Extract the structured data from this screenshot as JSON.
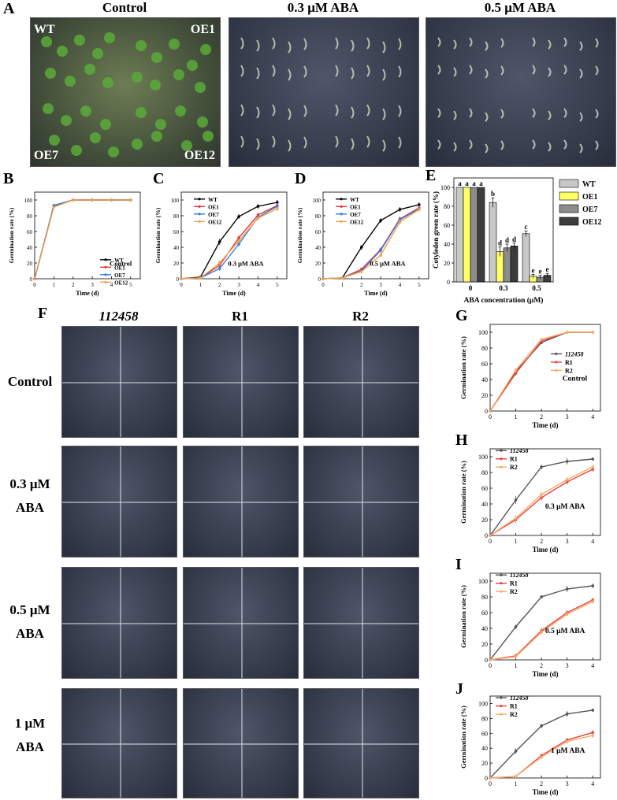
{
  "panel_letters": {
    "A": "A",
    "B": "B",
    "C": "C",
    "D": "D",
    "E": "E",
    "F": "F",
    "G": "G",
    "H": "H",
    "I": "I",
    "J": "J"
  },
  "photo_a": {
    "headers": [
      "Control",
      "0.3 μM ABA",
      "0.5 μM ABA"
    ],
    "quadrant_labels": [
      "WT",
      "OE1",
      "OE7",
      "OE12"
    ]
  },
  "photo_f": {
    "col_headers": [
      "112458",
      "R1",
      "R2"
    ],
    "row_labels": [
      {
        "line1": "Control",
        "line2": ""
      },
      {
        "line1": "0.3 μM",
        "line2": "ABA"
      },
      {
        "line1": "0.5 μM",
        "line2": "ABA"
      },
      {
        "line1": "1 μM",
        "line2": "ABA"
      }
    ]
  },
  "colors": {
    "WT": "#000000",
    "OE1": "#e8342f",
    "OE7": "#2e7ce6",
    "OE12": "#f0a24a",
    "line112458": "#555555",
    "R1": "#e8443f",
    "R2": "#f5ad6b"
  },
  "chart_data": [
    {
      "panel": "B",
      "type": "line",
      "title": "",
      "annotation": "Control",
      "xlabel": "Time (d)",
      "ylabel": "Germination rate (%)",
      "x": [
        0,
        1,
        2,
        3,
        4,
        5
      ],
      "xticks": [
        "0",
        "1",
        "2",
        "3",
        "4",
        "5"
      ],
      "yticks": [
        "0",
        "20",
        "40",
        "60",
        "80",
        "100"
      ],
      "xlim": [
        0,
        5.5
      ],
      "ylim": [
        0,
        110
      ],
      "series": [
        {
          "name": "WT",
          "color": "#000000",
          "values": [
            0,
            93,
            100,
            100,
            100,
            100
          ],
          "err": [
            0,
            2,
            0,
            0,
            0,
            0
          ]
        },
        {
          "name": "OE1",
          "color": "#e8342f",
          "values": [
            0,
            92,
            100,
            100,
            100,
            100
          ],
          "err": [
            0,
            2,
            0,
            0,
            0,
            0
          ]
        },
        {
          "name": "OE7",
          "color": "#2e7ce6",
          "values": [
            0,
            93,
            100,
            100,
            100,
            100
          ],
          "err": [
            0,
            2,
            0,
            0,
            0,
            0
          ]
        },
        {
          "name": "OE12",
          "color": "#f0a24a",
          "values": [
            0,
            91,
            100,
            100,
            100,
            100
          ],
          "err": [
            0,
            2,
            0,
            0,
            0,
            0
          ]
        }
      ],
      "legend": "right"
    },
    {
      "panel": "C",
      "type": "line",
      "title": "",
      "annotation": "0.3 μM ABA",
      "xlabel": "Time (d)",
      "ylabel": "Germination rate (%)",
      "x": [
        0,
        1,
        2,
        3,
        4,
        5
      ],
      "xticks": [
        "0",
        "1",
        "2",
        "3",
        "4",
        "5"
      ],
      "yticks": [
        "0",
        "20",
        "40",
        "60",
        "80",
        "100"
      ],
      "xlim": [
        0,
        5.5
      ],
      "ylim": [
        0,
        110
      ],
      "series": [
        {
          "name": "WT",
          "color": "#000000",
          "values": [
            0,
            2,
            47,
            79,
            92,
            97
          ],
          "err": [
            0,
            0,
            4,
            3,
            3,
            3
          ]
        },
        {
          "name": "OE1",
          "color": "#e8342f",
          "values": [
            0,
            1,
            17,
            52,
            81,
            93
          ],
          "err": [
            0,
            0,
            3,
            3,
            3,
            3
          ]
        },
        {
          "name": "OE7",
          "color": "#2e7ce6",
          "values": [
            0,
            1,
            13,
            44,
            78,
            92
          ],
          "err": [
            0,
            0,
            3,
            3,
            3,
            3
          ]
        },
        {
          "name": "OE12",
          "color": "#f0a24a",
          "values": [
            0,
            1,
            20,
            48,
            77,
            89
          ],
          "err": [
            0,
            0,
            4,
            3,
            3,
            3
          ]
        }
      ],
      "legend": "top-left"
    },
    {
      "panel": "D",
      "type": "line",
      "title": "",
      "annotation": "0.5 μM ABA",
      "xlabel": "Time (d)",
      "ylabel": "Germination rate (%)",
      "x": [
        0,
        1,
        2,
        3,
        4,
        5
      ],
      "xticks": [
        "0",
        "1",
        "2",
        "3",
        "4",
        "5"
      ],
      "yticks": [
        "0",
        "20",
        "40",
        "60",
        "80",
        "100"
      ],
      "xlim": [
        0,
        5.5
      ],
      "ylim": [
        0,
        110
      ],
      "series": [
        {
          "name": "WT",
          "color": "#000000",
          "values": [
            0,
            1,
            40,
            74,
            88,
            94
          ],
          "err": [
            0,
            0,
            3,
            3,
            3,
            3
          ]
        },
        {
          "name": "OE1",
          "color": "#e8342f",
          "values": [
            0,
            1,
            12,
            37,
            76,
            90
          ],
          "err": [
            0,
            0,
            2,
            3,
            3,
            3
          ]
        },
        {
          "name": "OE7",
          "color": "#2e7ce6",
          "values": [
            0,
            1,
            10,
            36,
            75,
            89
          ],
          "err": [
            0,
            0,
            2,
            3,
            3,
            3
          ]
        },
        {
          "name": "OE12",
          "color": "#f0a24a",
          "values": [
            0,
            1,
            9,
            30,
            72,
            88
          ],
          "err": [
            0,
            0,
            2,
            3,
            3,
            3
          ]
        }
      ],
      "legend": "top-left"
    },
    {
      "panel": "E",
      "type": "bar",
      "title": "",
      "xlabel": "ABA concentration (μM)",
      "ylabel": "Cotyledon green rate (%)",
      "categories": [
        "0",
        "0.3",
        "0.5"
      ],
      "yticks": [
        "0",
        "20",
        "40",
        "60",
        "80",
        "100"
      ],
      "ylim": [
        0,
        110
      ],
      "series": [
        {
          "name": "WT",
          "color": "#c8c8c8",
          "values": [
            100,
            84,
            51
          ],
          "err": [
            0,
            5,
            3
          ],
          "letters": [
            "a",
            "b",
            "c"
          ]
        },
        {
          "name": "OE1",
          "color": "#ffff66",
          "values": [
            100,
            32,
            6
          ],
          "err": [
            0,
            5,
            2
          ],
          "letters": [
            "a",
            "d",
            "e"
          ]
        },
        {
          "name": "OE7",
          "color": "#8c8c8c",
          "values": [
            100,
            36,
            5
          ],
          "err": [
            0,
            4,
            2
          ],
          "letters": [
            "a",
            "d",
            "e"
          ]
        },
        {
          "name": "OE12",
          "color": "#3c3c3c",
          "values": [
            100,
            38,
            7
          ],
          "err": [
            0,
            3,
            2
          ],
          "letters": [
            "a",
            "d",
            "e"
          ]
        }
      ],
      "legend": "top-right"
    },
    {
      "panel": "G",
      "type": "line",
      "title": "",
      "annotation": "Control",
      "xlabel": "Time (d)",
      "ylabel": "Germination rate (%)",
      "x": [
        0,
        1,
        2,
        3,
        4
      ],
      "xticks": [
        "0",
        "1",
        "2",
        "3",
        "4"
      ],
      "yticks": [
        "0",
        "20",
        "40",
        "60",
        "80",
        "100"
      ],
      "xlim": [
        0,
        4.3
      ],
      "ylim": [
        0,
        110
      ],
      "series": [
        {
          "name": "112458",
          "color": "#555555",
          "values": [
            0,
            50,
            87,
            100,
            100
          ],
          "err": [
            0,
            3,
            2,
            0,
            0
          ]
        },
        {
          "name": "R1",
          "color": "#e8443f",
          "values": [
            0,
            48,
            89,
            100,
            100
          ],
          "err": [
            0,
            3,
            2,
            0,
            0
          ]
        },
        {
          "name": "R2",
          "color": "#f5ad6b",
          "values": [
            0,
            52,
            91,
            100,
            100
          ],
          "err": [
            0,
            3,
            2,
            0,
            0
          ]
        }
      ],
      "legend": "right"
    },
    {
      "panel": "H",
      "type": "line",
      "title": "",
      "annotation": "0.3 μM ABA",
      "xlabel": "Time (d)",
      "ylabel": "Germination rate (%)",
      "x": [
        0,
        1,
        2,
        3,
        4
      ],
      "xticks": [
        "0",
        "1",
        "2",
        "3",
        "4"
      ],
      "yticks": [
        "0",
        "20",
        "40",
        "60",
        "80",
        "100"
      ],
      "xlim": [
        0,
        4.3
      ],
      "ylim": [
        0,
        110
      ],
      "series": [
        {
          "name": "112458",
          "color": "#555555",
          "values": [
            0,
            45,
            87,
            94,
            97
          ],
          "err": [
            0,
            5,
            3,
            4,
            2
          ]
        },
        {
          "name": "R1",
          "color": "#e8443f",
          "values": [
            0,
            20,
            48,
            68,
            84
          ],
          "err": [
            0,
            4,
            4,
            3,
            3
          ]
        },
        {
          "name": "R2",
          "color": "#f5ad6b",
          "values": [
            0,
            22,
            52,
            71,
            87
          ],
          "err": [
            0,
            4,
            4,
            3,
            3
          ]
        }
      ],
      "legend": "top-left"
    },
    {
      "panel": "I",
      "type": "line",
      "title": "",
      "annotation": "0.5 μM ABA",
      "xlabel": "Time (d)",
      "ylabel": "Germination rate (%)",
      "x": [
        0,
        1,
        2,
        3,
        4
      ],
      "xticks": [
        "0",
        "1",
        "2",
        "3",
        "4"
      ],
      "yticks": [
        "0",
        "20",
        "40",
        "60",
        "80",
        "100"
      ],
      "xlim": [
        0,
        4.3
      ],
      "ylim": [
        0,
        110
      ],
      "series": [
        {
          "name": "112458",
          "color": "#555555",
          "values": [
            0,
            42,
            80,
            90,
            94
          ],
          "err": [
            0,
            3,
            2,
            4,
            3
          ]
        },
        {
          "name": "R1",
          "color": "#e8443f",
          "values": [
            0,
            5,
            37,
            60,
            76
          ],
          "err": [
            0,
            3,
            4,
            3,
            3
          ]
        },
        {
          "name": "R2",
          "color": "#f5ad6b",
          "values": [
            0,
            4,
            35,
            58,
            74
          ],
          "err": [
            0,
            3,
            4,
            3,
            3
          ]
        }
      ],
      "legend": "top-left"
    },
    {
      "panel": "J",
      "type": "line",
      "title": "",
      "annotation": "1 μM ABA",
      "xlabel": "Time (d)",
      "ylabel": "Germination rate (%)",
      "x": [
        0,
        1,
        2,
        3,
        4
      ],
      "xticks": [
        "0",
        "1",
        "2",
        "3",
        "4"
      ],
      "yticks": [
        "0",
        "20",
        "40",
        "60",
        "80",
        "100"
      ],
      "xlim": [
        0,
        4.3
      ],
      "ylim": [
        0,
        110
      ],
      "series": [
        {
          "name": "112458",
          "color": "#555555",
          "values": [
            0,
            36,
            70,
            86,
            91
          ],
          "err": [
            0,
            4,
            3,
            4,
            2
          ]
        },
        {
          "name": "R1",
          "color": "#e8443f",
          "values": [
            0,
            2,
            30,
            51,
            61
          ],
          "err": [
            0,
            1,
            3,
            3,
            3
          ]
        },
        {
          "name": "R2",
          "color": "#f5ad6b",
          "values": [
            0,
            2,
            28,
            49,
            57
          ],
          "err": [
            0,
            1,
            3,
            3,
            3
          ]
        }
      ],
      "legend": "top-left"
    }
  ]
}
